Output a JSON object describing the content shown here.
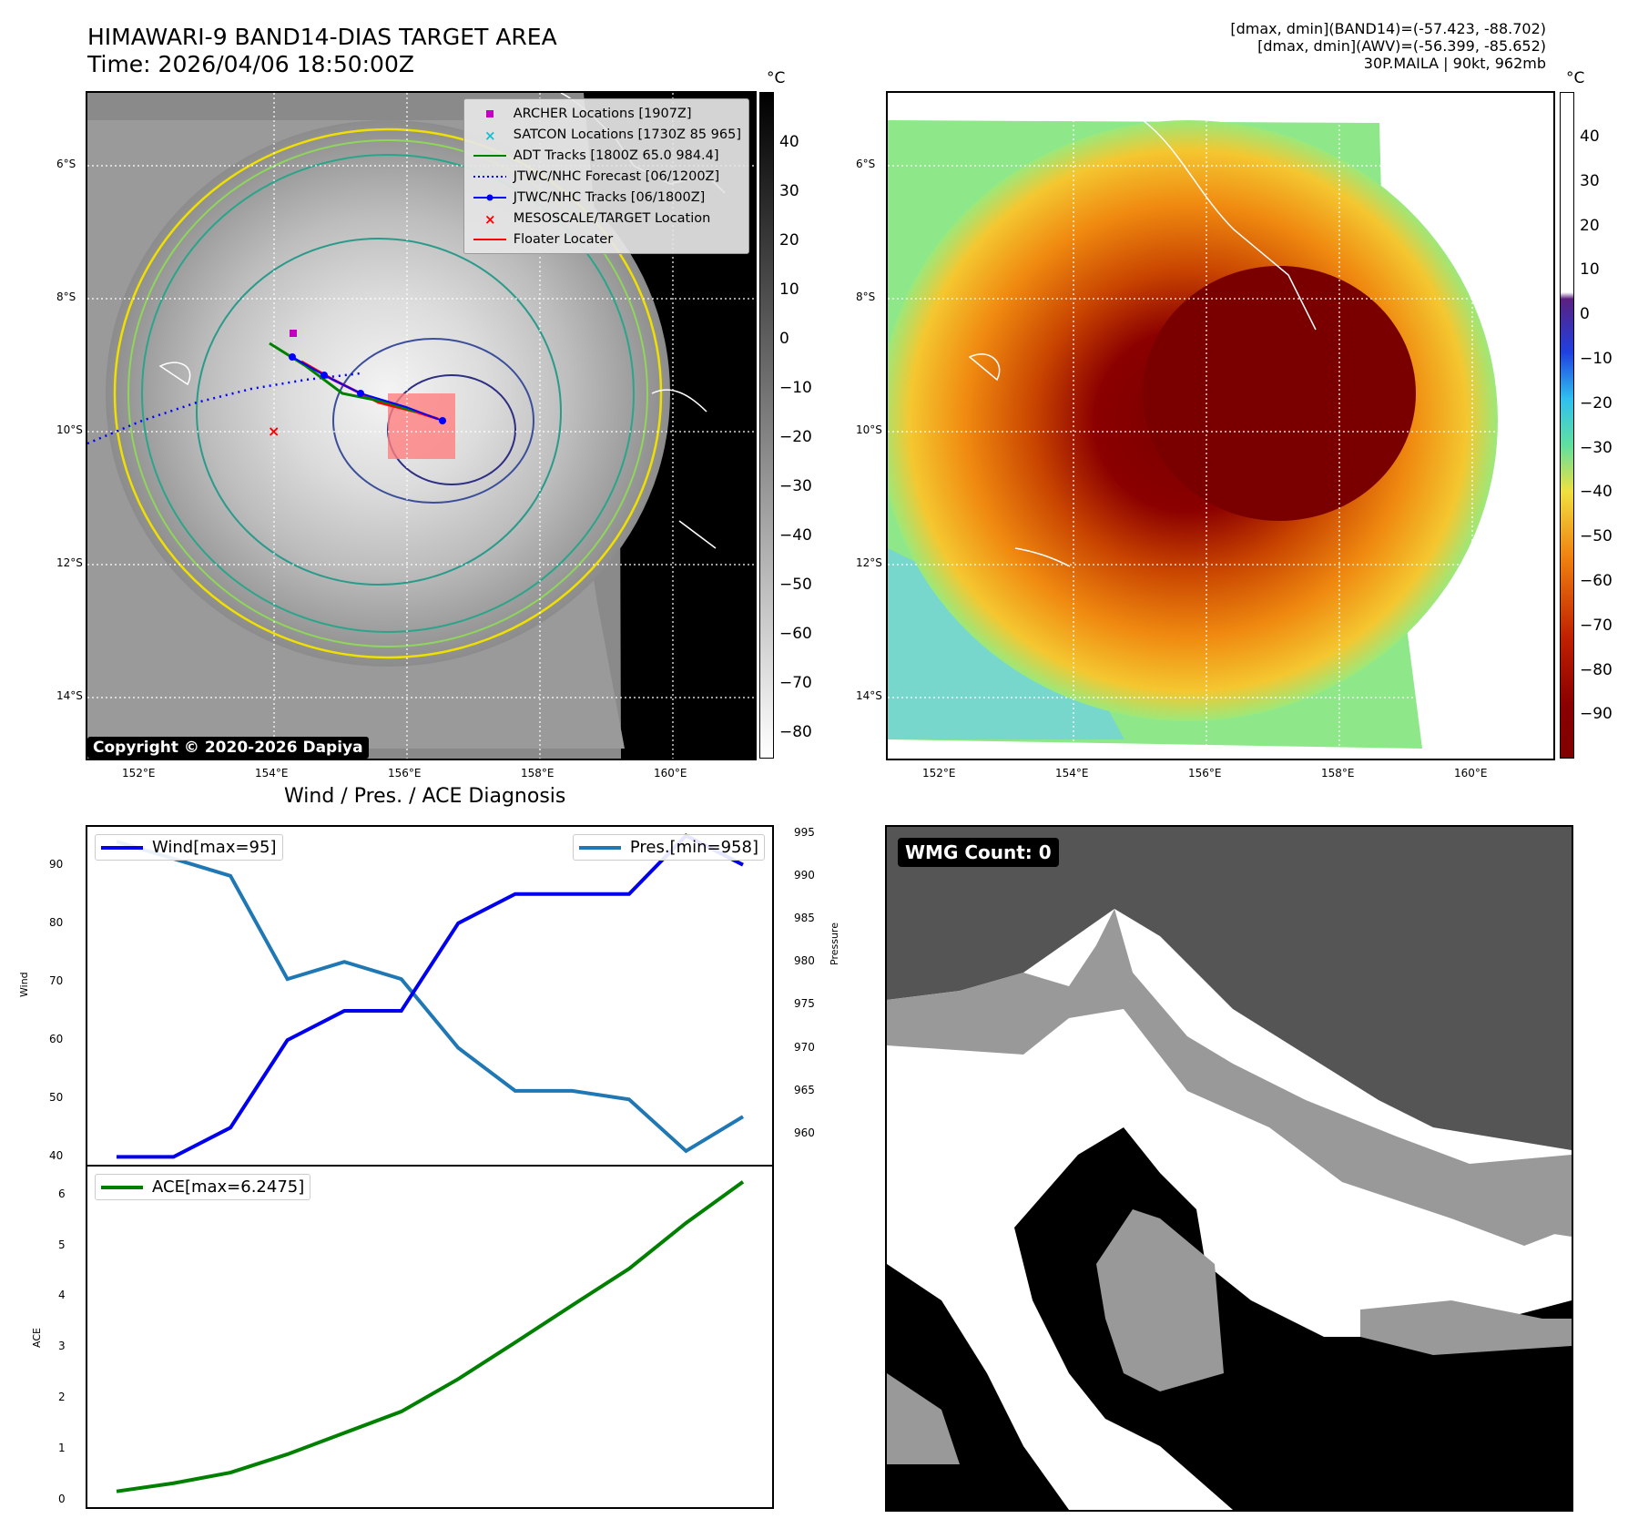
{
  "header": {
    "title_line1": "HIMAWARI-9 BAND14-DIAS TARGET AREA",
    "title_line2": "Time: 2026/04/06 18:50:00Z",
    "info_line1": "[dmax, dmin](BAND14)=(-57.423, -88.702)",
    "info_line2": "[dmax, dmin](AWV)=(-56.399, -85.652)",
    "info_line3": "30P.MAILA | 90kt, 962mb"
  },
  "map_axes": {
    "lon_ticks": [
      "152°E",
      "154°E",
      "156°E",
      "158°E",
      "160°E"
    ],
    "lat_ticks": [
      "6°S",
      "8°S",
      "10°S",
      "12°S",
      "14°S"
    ]
  },
  "colorbar_left": {
    "unit": "°C",
    "ticks": [
      "40",
      "30",
      "20",
      "10",
      "0",
      "−10",
      "−20",
      "−30",
      "−40",
      "−50",
      "−60",
      "−70",
      "−80"
    ]
  },
  "colorbar_right": {
    "unit": "°C",
    "ticks": [
      "40",
      "30",
      "20",
      "10",
      "0",
      "−10",
      "−20",
      "−30",
      "−40",
      "−50",
      "−60",
      "−70",
      "−80",
      "−90"
    ]
  },
  "legend": {
    "items": [
      {
        "label": "ARCHER Locations [1907Z]",
        "symbol": "square",
        "color": "#c000c0"
      },
      {
        "label": "SATCON Locations [1730Z 85 965]",
        "symbol": "x",
        "color": "#17becf"
      },
      {
        "label": "ADT Tracks [1800Z 65.0 984.4]",
        "symbol": "line",
        "color": "#008000"
      },
      {
        "label": "JTWC/NHC Forecast [06/1200Z]",
        "symbol": "dotted",
        "color": "#0000ff"
      },
      {
        "label": "JTWC/NHC Tracks [06/1800Z]",
        "symbol": "line-dot",
        "color": "#0000ff"
      },
      {
        "label": "MESOSCALE/TARGET Location",
        "symbol": "x",
        "color": "#ff0000"
      },
      {
        "label": "Floater Locater",
        "symbol": "line",
        "color": "#ff0000"
      }
    ]
  },
  "copyright": "Copyright © 2020-2026 Dapiya",
  "wmg": "WMG Count: 0",
  "diagnosis": {
    "title": "Wind / Pres. / ACE Diagnosis",
    "wind_label": "Wind[max=95]",
    "pres_label": "Pres.[min=958]",
    "ace_label": "ACE[max=6.2475]",
    "wind_axis": "Wind",
    "pres_axis": "Pressure",
    "ace_axis": "ACE",
    "wind_ticks": [
      "40",
      "50",
      "60",
      "70",
      "80",
      "90"
    ],
    "pres_ticks": [
      "960",
      "965",
      "970",
      "975",
      "980",
      "985",
      "990",
      "995"
    ],
    "ace_ticks": [
      "0",
      "1",
      "2",
      "3",
      "4",
      "5",
      "6"
    ]
  },
  "chart_data": [
    {
      "type": "line",
      "title": "Wind / Pres. / ACE Diagnosis",
      "x": [
        0,
        1,
        2,
        3,
        4,
        5,
        6,
        7,
        8,
        9,
        10,
        11
      ],
      "series": [
        {
          "name": "Wind[max=95]",
          "axis": "left",
          "color": "#0000ee",
          "values": [
            40,
            40,
            45,
            60,
            65,
            65,
            80,
            85,
            85,
            85,
            95,
            90
          ]
        },
        {
          "name": "Pres.[min=958]",
          "axis": "right",
          "color": "#1f77b4",
          "values": [
            994,
            992,
            990,
            978,
            980,
            978,
            970,
            965,
            965,
            964,
            958,
            962
          ]
        }
      ],
      "ylabel": "Wind",
      "ylim": [
        38.5,
        96.5
      ],
      "y2label": "Pressure",
      "y2lim": [
        956.3,
        995.7
      ]
    },
    {
      "type": "line",
      "x": [
        0,
        1,
        2,
        3,
        4,
        5,
        6,
        7,
        8,
        9,
        10,
        11
      ],
      "series": [
        {
          "name": "ACE[max=6.2475]",
          "color": "#008000",
          "values": [
            0.16,
            0.32,
            0.53,
            0.89,
            1.31,
            1.73,
            2.37,
            3.09,
            3.82,
            4.54,
            5.44,
            6.25
          ]
        }
      ],
      "ylabel": "ACE",
      "ylim": [
        -0.15,
        6.55
      ]
    }
  ]
}
